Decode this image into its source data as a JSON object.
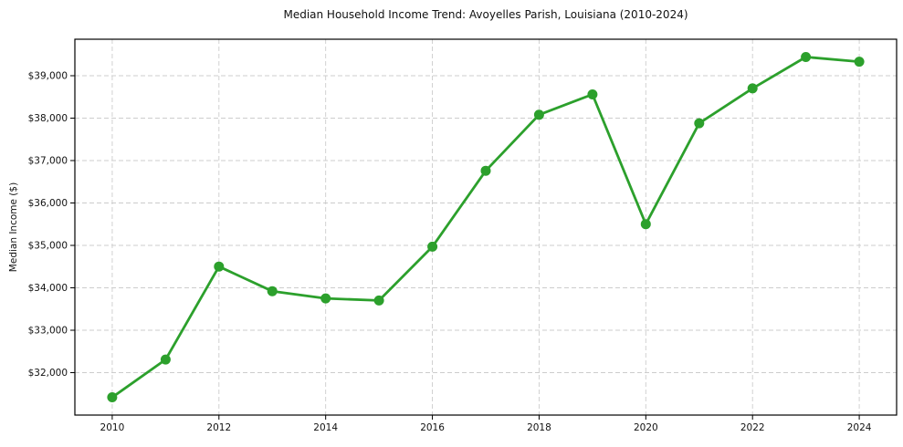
{
  "chart_data": {
    "type": "line",
    "title": "Median Household Income Trend: Avoyelles Parish, Louisiana (2010-2024)",
    "xlabel": "",
    "ylabel": "Median Income ($)",
    "x": [
      2010,
      2011,
      2012,
      2013,
      2014,
      2015,
      2016,
      2017,
      2018,
      2019,
      2020,
      2021,
      2022,
      2023,
      2024
    ],
    "values": [
      31420,
      32310,
      34500,
      33920,
      33750,
      33700,
      34970,
      36760,
      38080,
      38560,
      35500,
      37880,
      38700,
      39440,
      39330
    ],
    "series_name": "Median Household Income",
    "xlim": [
      2009.3,
      2024.7
    ],
    "ylim": [
      31000,
      39860
    ],
    "xticks": [
      2010,
      2012,
      2014,
      2016,
      2018,
      2020,
      2022,
      2024
    ],
    "xtick_labels": [
      "2010",
      "2012",
      "2014",
      "2016",
      "2018",
      "2020",
      "2022",
      "2024"
    ],
    "yticks": [
      32000,
      33000,
      34000,
      35000,
      36000,
      37000,
      38000,
      39000
    ],
    "ytick_labels": [
      "$32,000",
      "$33,000",
      "$34,000",
      "$35,000",
      "$36,000",
      "$37,000",
      "$38,000",
      "$39,000"
    ],
    "grid": true,
    "legend": "none",
    "style": {
      "line_color": "#2ca02c",
      "marker_color": "#2ca02c",
      "grid_color": "#cccccc",
      "frame_color": "#000000",
      "tick_color": "#000000",
      "text_color": "#111111",
      "background": "#ffffff"
    }
  }
}
